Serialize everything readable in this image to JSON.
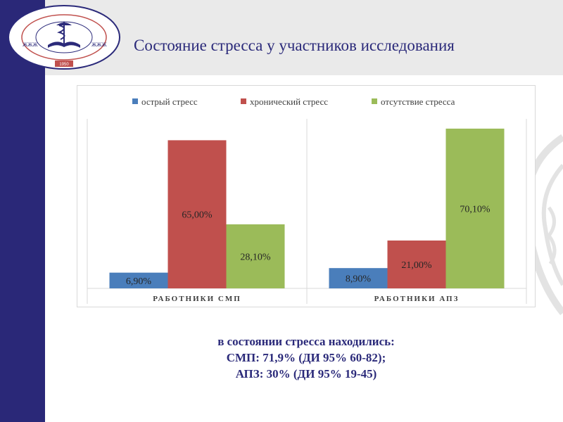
{
  "header": {
    "title": "Состояние стресса у участников исследования",
    "logo_text": "ҚАРАҒАНДЫ МЕМЛЕКЕТТІК МЕДИЦИНА УНИВЕРСИТЕТІ",
    "logo_year": "1950"
  },
  "colors": {
    "sidebar": "#2a2878",
    "title": "#2b2a7a",
    "acute": "#4a7ebb",
    "chronic": "#c0504d",
    "absent": "#9bbb59"
  },
  "chart_data": {
    "type": "bar",
    "categories": [
      "РАБОТНИКИ СМП",
      "РАБОТНИКИ АПЗ"
    ],
    "series": [
      {
        "name": "острый стресс",
        "values": [
          6.9,
          8.9
        ],
        "labels": [
          "6,90%",
          "8,90%"
        ]
      },
      {
        "name": "хронический стресс",
        "values": [
          65.0,
          21.0
        ],
        "labels": [
          "65,00%",
          "21,00%"
        ]
      },
      {
        "name": "отсутствие стресса",
        "values": [
          28.1,
          70.1
        ],
        "labels": [
          "28,10%",
          "70,10%"
        ]
      }
    ],
    "ylim": [
      0,
      75
    ],
    "grid": false,
    "legend": "top"
  },
  "summary": {
    "line1": "в состоянии стресса находились:",
    "line2": "СМП: 71,9% (ДИ 95% 60-82);",
    "line3": "АПЗ: 30% (ДИ 95% 19-45)"
  }
}
